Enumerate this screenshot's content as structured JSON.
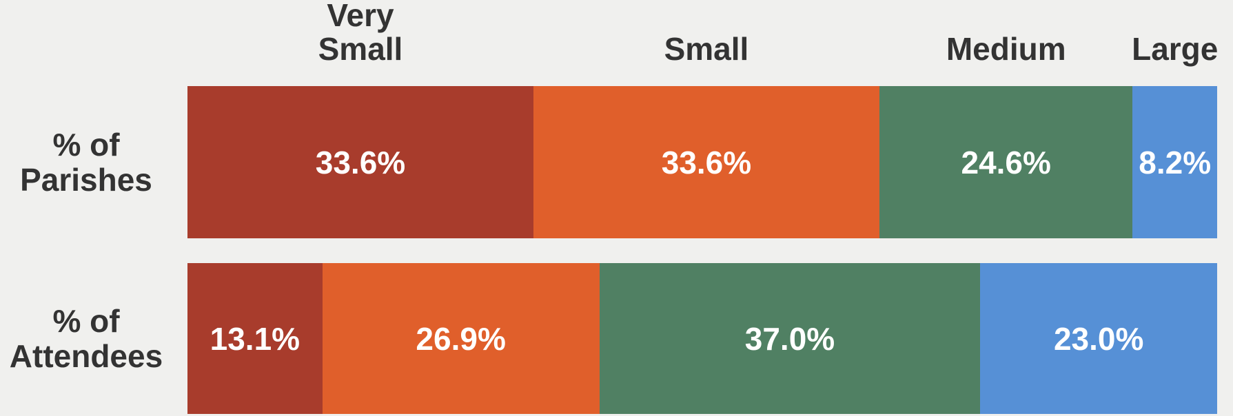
{
  "chart_data": {
    "type": "stacked-bar-horizontal",
    "categories": [
      "% of Parishes",
      "% of Attendees"
    ],
    "xlim": [
      0,
      100
    ],
    "series": [
      {
        "name": "Very Small",
        "color": "#a83c2c",
        "values": [
          33.6,
          13.1
        ],
        "value_labels": [
          "33.6%",
          "13.1%"
        ]
      },
      {
        "name": "Small",
        "color": "#e05f2b",
        "values": [
          33.6,
          26.9
        ],
        "value_labels": [
          "33.6%",
          "26.9%"
        ]
      },
      {
        "name": "Medium",
        "color": "#508063",
        "values": [
          24.6,
          37.0
        ],
        "value_labels": [
          "24.6%",
          "37.0%"
        ]
      },
      {
        "name": "Large",
        "color": "#5690d6",
        "values": [
          8.2,
          23.0
        ],
        "value_labels": [
          "8.2%",
          "23.0%"
        ]
      }
    ]
  }
}
